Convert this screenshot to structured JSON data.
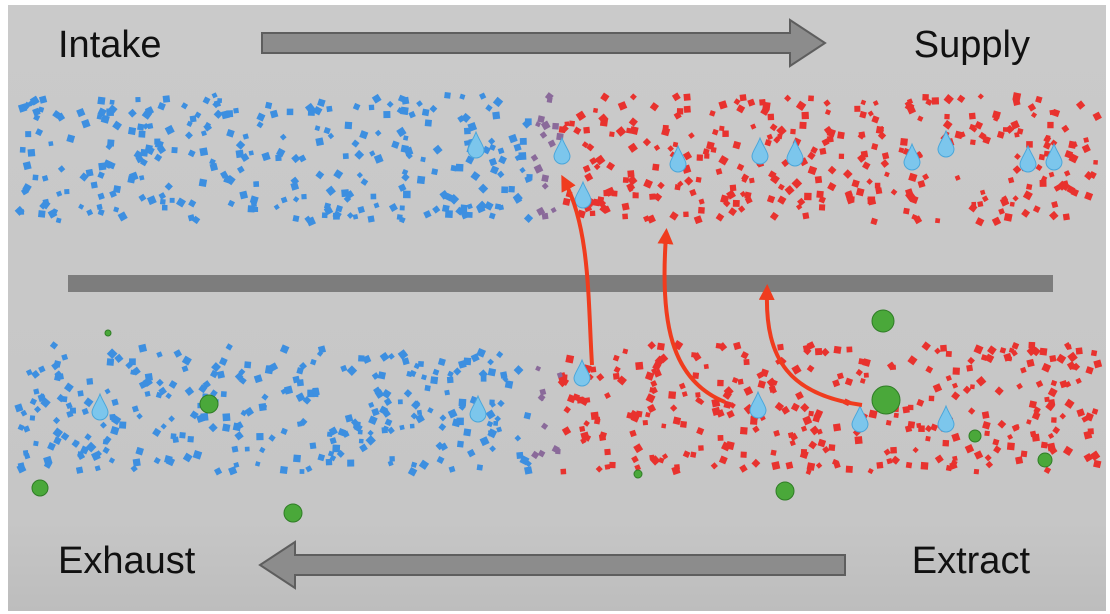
{
  "labels": {
    "intake": "Intake",
    "supply": "Supply",
    "exhaust": "Exhaust",
    "extract": "Extract"
  }
}
